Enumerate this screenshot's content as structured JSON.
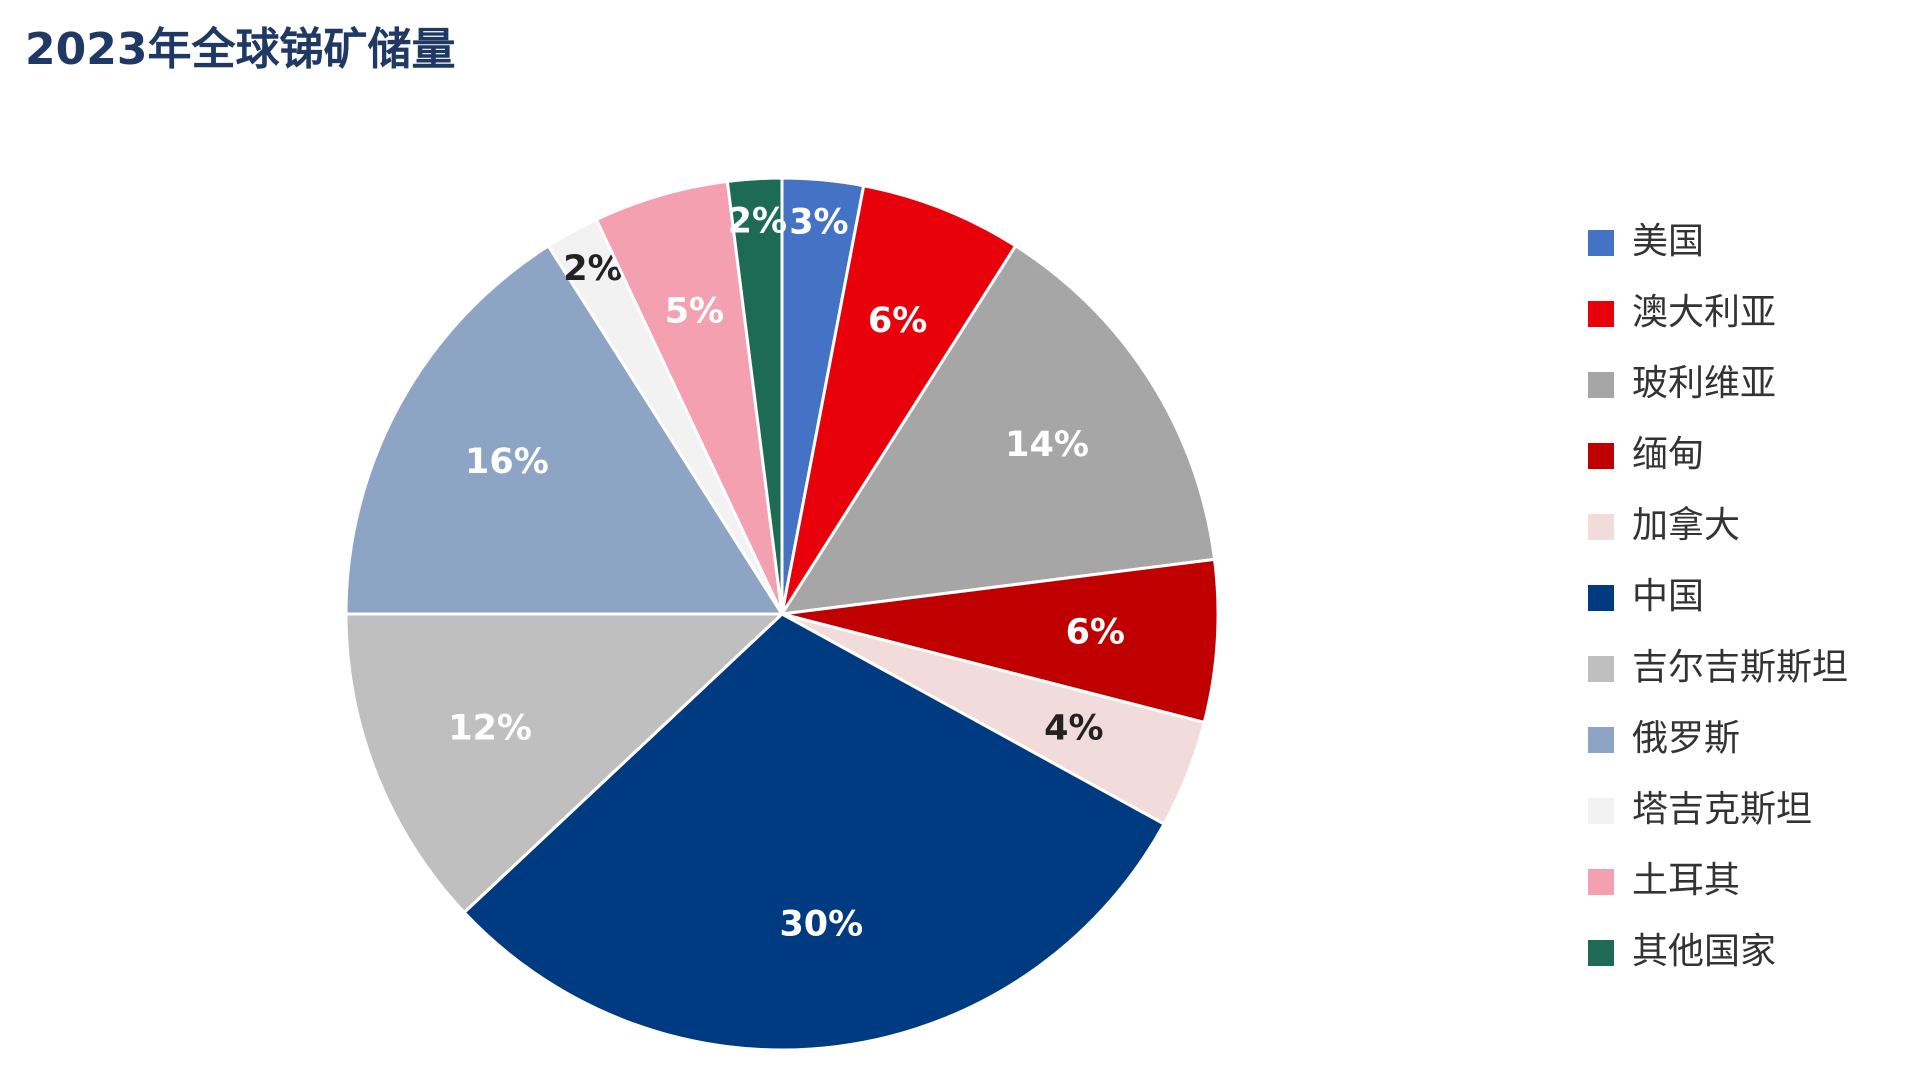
{
  "chart_data": {
    "type": "pie",
    "title": "2023年全球锑矿储量",
    "categories": [
      "美国",
      "澳大利亚",
      "玻利维亚",
      "缅甸",
      "加拿大",
      "中国",
      "吉尔吉斯斯坦",
      "俄罗斯",
      "塔吉克斯坦",
      "土耳其",
      "其他国家"
    ],
    "values": [
      3,
      6,
      14,
      6,
      4,
      30,
      12,
      16,
      2,
      5,
      2
    ],
    "value_labels": [
      "3%",
      "6%",
      "14%",
      "6%",
      "4%",
      "30%",
      "12%",
      "16%",
      "2%",
      "5%",
      "2%"
    ],
    "colors": [
      "#4472c4",
      "#e8000b",
      "#a6a6a6",
      "#c00000",
      "#f2dcdb",
      "#003a80",
      "#bfbfbf",
      "#8ea4c4",
      "#f2f2f2",
      "#f4a0b0",
      "#1e6b55"
    ],
    "legend": "right"
  }
}
